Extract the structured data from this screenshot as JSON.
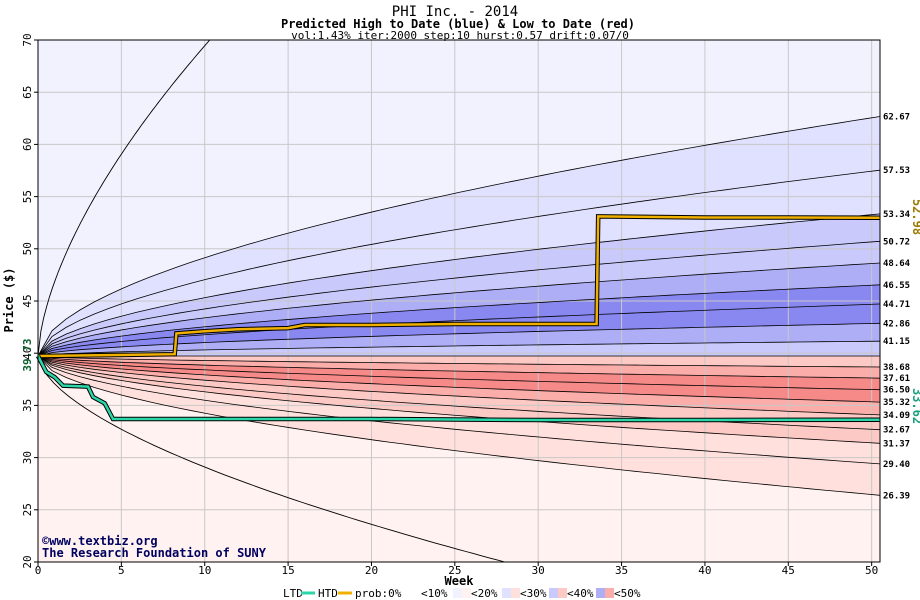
{
  "chart_data": {
    "type": "area",
    "title": "PHI Inc. - 2014",
    "subtitle": "Predicted High to Date (blue) &  Low to Date (red)",
    "params": "vol:1.43% iter:2000 step:10 hurst:0.57 drift:0.07/0",
    "xlabel": "Week",
    "ylabel": "Price ($)",
    "xlim": [
      0,
      50.5
    ],
    "ylim": [
      20,
      70
    ],
    "x_ticks": [
      0,
      5,
      10,
      15,
      20,
      25,
      30,
      35,
      40,
      45,
      50
    ],
    "y_ticks": [
      20,
      25,
      30,
      35,
      40,
      45,
      50,
      55,
      60,
      65,
      70
    ],
    "grid": true,
    "start_price": 39.73,
    "start_price_label": "39.73",
    "high_quantiles": [
      {
        "label": "62.67",
        "value": 62.67
      },
      {
        "label": "57.53",
        "value": 57.53
      },
      {
        "label": "53.34",
        "value": 53.34
      },
      {
        "label": "50.72",
        "value": 50.72
      },
      {
        "label": "48.64",
        "value": 48.64
      },
      {
        "label": "46.55",
        "value": 46.55
      },
      {
        "label": "44.71",
        "value": 44.71
      },
      {
        "label": "42.86",
        "value": 42.86
      },
      {
        "label": "41.15",
        "value": 41.15
      }
    ],
    "low_quantiles": [
      {
        "label": "38.68",
        "value": 38.68
      },
      {
        "label": "37.61",
        "value": 37.61
      },
      {
        "label": "36.50",
        "value": 36.5
      },
      {
        "label": "35.32",
        "value": 35.32
      },
      {
        "label": "34.09",
        "value": 34.09
      },
      {
        "label": "32.67",
        "value": 32.67
      },
      {
        "label": "31.37",
        "value": 31.37
      },
      {
        "label": "29.40",
        "value": 29.4
      },
      {
        "label": "26.39",
        "value": 26.39
      }
    ],
    "upper_extreme_end": 70,
    "lower_extreme_end": 20,
    "htd_series": {
      "name": "HTD",
      "final_label": "52.98",
      "points": [
        [
          0,
          39.73
        ],
        [
          8.2,
          39.9
        ],
        [
          8.3,
          41.9
        ],
        [
          10,
          42.1
        ],
        [
          12,
          42.3
        ],
        [
          15,
          42.4
        ],
        [
          16,
          42.7
        ],
        [
          20,
          42.7
        ],
        [
          25,
          42.8
        ],
        [
          30,
          42.8
        ],
        [
          33.5,
          42.8
        ],
        [
          33.6,
          53.1
        ],
        [
          40,
          53.0
        ],
        [
          45,
          53.0
        ],
        [
          50.5,
          52.98
        ]
      ]
    },
    "ltd_series": {
      "name": "LTD",
      "final_label": "33.62",
      "points": [
        [
          0,
          39.73
        ],
        [
          0.5,
          38.2
        ],
        [
          1,
          37.7
        ],
        [
          1.5,
          36.9
        ],
        [
          3,
          36.8
        ],
        [
          3.3,
          35.8
        ],
        [
          4,
          35.2
        ],
        [
          4.5,
          33.7
        ],
        [
          10,
          33.7
        ],
        [
          20,
          33.7
        ],
        [
          30,
          33.6
        ],
        [
          40,
          33.6
        ],
        [
          50.5,
          33.62
        ]
      ]
    },
    "colors": {
      "blue_band_10": "#f2f2ff",
      "blue_band_20": "#e0e0ff",
      "blue_band_30": "#c9c9fb",
      "blue_band_40": "#aeaef7",
      "blue_band_50": "#8888f0",
      "red_band_10": "#fff2f0",
      "red_band_20": "#ffe0dc",
      "red_band_30": "#fcc9c4",
      "red_band_40": "#fbadaa",
      "red_band_50": "#f58a88",
      "htd_line": "#f0b000",
      "ltd_line": "#2bd6a8",
      "htd_label": "#9a7a00",
      "ltd_label": "#1aa07c",
      "start_label": "#0b5e2e",
      "credit_text": "#000060"
    },
    "legend": {
      "placement": "bottom",
      "ltd": "LTD",
      "htd": "HTD",
      "prob": "prob:0%",
      "b10": "<10%",
      "b20": "<20%",
      "b30": "<30%",
      "b40": "<40%",
      "b50": "<50%"
    },
    "credit": {
      "line1": "©www.textbiz.org",
      "line2": "The Research Foundation of SUNY"
    }
  }
}
